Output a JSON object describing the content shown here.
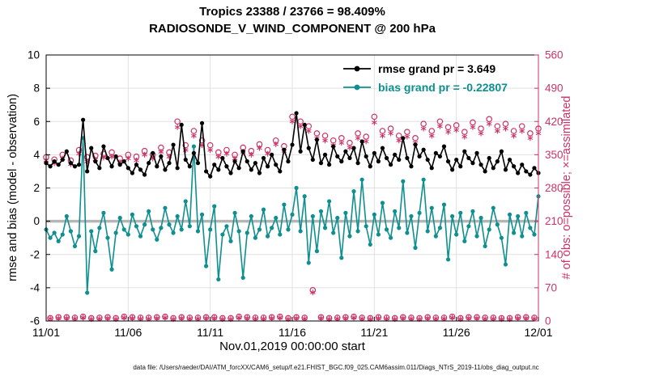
{
  "title": {
    "line1": "Tropics 23388 / 23766 = 98.409%",
    "line2": "RADIOSONDE_V_WIND_COMPONENT @ 200 hPa"
  },
  "legend": {
    "items": [
      {
        "label": "rmse grand pr = 3.649",
        "color": "#000000"
      },
      {
        "label": "bias grand pr = -0.22807",
        "color": "#0f8f8f"
      }
    ]
  },
  "footer": "data file: /Users/raeder/DAI/ATM_forcXX/CAM6_setup/f.e21.FHIST_BGC.f09_025.CAM6assim.011/Diags_NTrS_2019-11/obs_diag_output.nc",
  "chart_data": {
    "type": "line",
    "title": "Tropics 23388 / 23766 = 98.409% — RADIOSONDE_V_WIND_COMPONENT @ 200 hPa",
    "xlabel": "Nov.01,2019 00:00:00 start",
    "x_range": [
      0,
      30
    ],
    "x_step_days": 0.25,
    "x_tick_positions": [
      0,
      5,
      10,
      15,
      20,
      25,
      30
    ],
    "x_tick_labels": [
      "11/01",
      "11/06",
      "11/11",
      "11/16",
      "11/21",
      "11/26",
      "12/01"
    ],
    "left_axis": {
      "label": "rmse and bias (model - observation)",
      "min": -6,
      "max": 10,
      "ticks": [
        -6,
        -4,
        -2,
        0,
        2,
        4,
        6,
        8,
        10
      ]
    },
    "right_axis": {
      "label": "# of obs: o=possible; ×=assimilated",
      "min": 0,
      "max": 560,
      "ticks": [
        0,
        70,
        140,
        210,
        280,
        350,
        420,
        490,
        560
      ],
      "color": "#cc3366"
    },
    "colors": {
      "rmse": "#000000",
      "bias": "#0f8f8f",
      "counts": "#cc3366",
      "zero_line": "#b5b5b5",
      "grid": "#e0e0e0"
    },
    "zero_reference": 0,
    "rmse_grand_prior": 3.649,
    "bias_grand_prior": -0.22807,
    "series": [
      {
        "name": "rmse",
        "axis": "left",
        "style": "line-dot",
        "color": "#000000",
        "values": [
          3.5,
          3.3,
          3.6,
          3.4,
          3.7,
          4.2,
          3.5,
          3.3,
          3.4,
          6.1,
          3.0,
          4.4,
          3.6,
          3.2,
          4.5,
          3.8,
          3.3,
          3.9,
          3.4,
          3.6,
          3.2,
          2.9,
          3.4,
          3.1,
          2.8,
          3.5,
          4.1,
          3.3,
          3.9,
          3.1,
          3.5,
          4.6,
          3.2,
          5.8,
          3.7,
          3.3,
          4.1,
          3.5,
          5.9,
          3.0,
          2.7,
          3.4,
          3.1,
          3.8,
          3.3,
          2.9,
          3.6,
          3.2,
          4.2,
          3.6,
          3.1,
          3.5,
          2.9,
          3.8,
          3.3,
          4.0,
          3.4,
          3.0,
          4.3,
          3.6,
          4.6,
          6.5,
          4.2,
          5.8,
          4.4,
          3.7,
          4.9,
          3.5,
          4.0,
          3.4,
          4.5,
          3.9,
          3.6,
          4.2,
          3.8,
          4.4,
          3.5,
          4.8,
          3.9,
          3.3,
          4.1,
          3.6,
          4.4,
          3.8,
          3.4,
          4.0,
          3.7,
          5.0,
          3.8,
          3.3,
          4.6,
          3.9,
          4.3,
          3.7,
          3.2,
          4.1,
          3.9,
          4.5,
          3.6,
          3.1,
          3.7,
          3.3,
          4.2,
          3.8,
          3.5,
          4.1,
          3.4,
          3.0,
          3.8,
          3.2,
          3.6,
          4.2,
          3.1,
          3.7,
          3.3,
          2.9,
          3.4,
          3.0,
          2.8,
          3.2,
          2.9
        ]
      },
      {
        "name": "bias",
        "axis": "left",
        "style": "line-dot",
        "color": "#0f8f8f",
        "values": [
          -0.5,
          -1.0,
          -0.7,
          -1.2,
          -0.8,
          0.3,
          -0.6,
          -1.5,
          -0.9,
          5.0,
          -4.3,
          -0.6,
          -1.8,
          -0.4,
          0.5,
          -1.0,
          -2.9,
          -0.7,
          0.2,
          -0.5,
          -0.8,
          0.4,
          -0.3,
          -0.9,
          -0.2,
          0.6,
          -0.5,
          -1.1,
          -0.4,
          0.8,
          -0.2,
          -0.7,
          0.3,
          -0.5,
          1.2,
          -0.3,
          4.5,
          -0.6,
          0.4,
          -2.7,
          -0.5,
          0.9,
          -3.5,
          -0.8,
          -0.3,
          -1.2,
          0.5,
          -0.6,
          -3.4,
          -0.7,
          0.3,
          -1.0,
          -0.5,
          0.7,
          -0.9,
          -0.4,
          0.2,
          -0.8,
          1.0,
          -0.5,
          0.4,
          2.0,
          -0.6,
          1.5,
          -2.5,
          0.3,
          -1.8,
          0.6,
          -0.4,
          1.2,
          -0.7,
          0.2,
          -2.2,
          0.5,
          -0.9,
          1.8,
          -0.6,
          2.5,
          -0.3,
          -1.4,
          0.4,
          -0.8,
          1.1,
          -0.5,
          -1.0,
          0.6,
          -0.4,
          2.4,
          -0.7,
          0.3,
          -1.6,
          0.5,
          2.5,
          -0.6,
          0.8,
          -0.9,
          -0.4,
          1.0,
          -2.3,
          0.3,
          -0.8,
          0.5,
          -1.2,
          -0.3,
          0.6,
          -0.9,
          0.2,
          -1.5,
          -0.5,
          0.8,
          -0.2,
          -1.0,
          -2.6,
          0.4,
          -0.7,
          0.3,
          -0.9,
          0.5,
          -0.4,
          -0.8,
          1.5
        ]
      },
      {
        "name": "possible",
        "axis": "right",
        "style": "circle",
        "color": "#cc3366",
        "values": [
          345,
          6,
          340,
          8,
          350,
          8,
          338,
          7,
          360,
          9,
          345,
          6,
          348,
          7,
          352,
          8,
          355,
          6,
          342,
          9,
          350,
          8,
          346,
          7,
          358,
          7,
          350,
          8,
          365,
          9,
          355,
          6,
          420,
          8,
          370,
          7,
          400,
          7,
          380,
          8,
          370,
          8,
          355,
          6,
          360,
          6,
          350,
          9,
          365,
          8,
          358,
          7,
          372,
          7,
          360,
          8,
          380,
          9,
          368,
          6,
          430,
          8,
          420,
          7,
          410,
          65,
          395,
          8,
          390,
          6,
          380,
          7,
          385,
          8,
          375,
          9,
          395,
          7,
          388,
          6,
          430,
          8,
          400,
          7,
          405,
          6,
          390,
          8,
          398,
          7,
          385,
          6,
          415,
          8,
          400,
          7,
          420,
          7,
          408,
          9,
          412,
          6,
          398,
          8,
          418,
          8,
          405,
          7,
          425,
          7,
          410,
          6,
          415,
          6,
          400,
          8,
          410,
          8,
          395,
          7,
          405
        ]
      },
      {
        "name": "assimilated",
        "axis": "right",
        "style": "asterisk",
        "color": "#cc3366",
        "values": [
          338,
          5,
          332,
          6,
          342,
          6,
          330,
          5,
          352,
          7,
          336,
          4,
          340,
          5,
          344,
          6,
          346,
          4,
          334,
          7,
          342,
          6,
          338,
          5,
          350,
          5,
          342,
          6,
          356,
          7,
          346,
          4,
          408,
          6,
          360,
          5,
          390,
          5,
          370,
          6,
          360,
          6,
          346,
          4,
          352,
          4,
          342,
          7,
          356,
          6,
          350,
          5,
          364,
          5,
          352,
          6,
          372,
          7,
          358,
          4,
          420,
          6,
          410,
          5,
          400,
          60,
          385,
          6,
          380,
          4,
          370,
          5,
          375,
          6,
          365,
          7,
          385,
          5,
          378,
          4,
          418,
          6,
          390,
          5,
          395,
          4,
          380,
          6,
          388,
          5,
          375,
          4,
          405,
          6,
          390,
          5,
          410,
          5,
          398,
          7,
          402,
          4,
          388,
          6,
          408,
          6,
          395,
          5,
          415,
          5,
          400,
          4,
          405,
          4,
          390,
          6,
          400,
          6,
          385,
          5,
          395
        ]
      }
    ]
  }
}
